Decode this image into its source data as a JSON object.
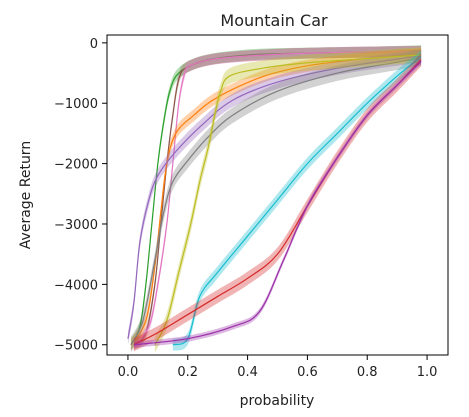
{
  "chart_data": {
    "type": "line",
    "title": "Mountain Car",
    "xlabel": "probability",
    "ylabel": "Average Return",
    "xlim": [
      -0.07,
      1.07
    ],
    "ylim": [
      -5170,
      130
    ],
    "xticks": [
      0.0,
      0.2,
      0.4,
      0.6,
      0.8,
      1.0
    ],
    "xtick_labels": [
      "0.0",
      "0.2",
      "0.4",
      "0.6",
      "0.8",
      "1.0"
    ],
    "yticks": [
      0,
      -1000,
      -2000,
      -3000,
      -4000,
      -5000
    ],
    "ytick_labels": [
      "0",
      "−1000",
      "−2000",
      "−3000",
      "−4000",
      "−5000"
    ],
    "grid": false,
    "legend": false,
    "series": [
      {
        "color": "#2ca02c",
        "band": 90,
        "points": [
          [
            0.01,
            -5000
          ],
          [
            0.04,
            -4700
          ],
          [
            0.06,
            -4000
          ],
          [
            0.08,
            -3000
          ],
          [
            0.1,
            -2000
          ],
          [
            0.12,
            -1300
          ],
          [
            0.14,
            -800
          ],
          [
            0.17,
            -500
          ],
          [
            0.25,
            -300
          ],
          [
            0.4,
            -200
          ],
          [
            0.6,
            -170
          ],
          [
            0.8,
            -155
          ],
          [
            0.98,
            -130
          ]
        ]
      },
      {
        "color": "#8c564b",
        "band": 90,
        "points": [
          [
            0.02,
            -5000
          ],
          [
            0.06,
            -4800
          ],
          [
            0.09,
            -4000
          ],
          [
            0.11,
            -3000
          ],
          [
            0.13,
            -2000
          ],
          [
            0.15,
            -1200
          ],
          [
            0.17,
            -600
          ],
          [
            0.2,
            -400
          ],
          [
            0.3,
            -260
          ],
          [
            0.5,
            -190
          ],
          [
            0.7,
            -160
          ],
          [
            0.98,
            -140
          ]
        ]
      },
      {
        "color": "#e377c2",
        "band": 90,
        "points": [
          [
            0.02,
            -5000
          ],
          [
            0.07,
            -4700
          ],
          [
            0.1,
            -4000
          ],
          [
            0.13,
            -3000
          ],
          [
            0.15,
            -2000
          ],
          [
            0.17,
            -1000
          ],
          [
            0.19,
            -500
          ],
          [
            0.21,
            -370
          ],
          [
            0.3,
            -260
          ],
          [
            0.5,
            -190
          ],
          [
            0.7,
            -160
          ],
          [
            0.98,
            -140
          ]
        ]
      },
      {
        "color": "#ff7f0e",
        "band": 100,
        "points": [
          [
            0.01,
            -5000
          ],
          [
            0.06,
            -4600
          ],
          [
            0.09,
            -3700
          ],
          [
            0.11,
            -2800
          ],
          [
            0.13,
            -2000
          ],
          [
            0.16,
            -1500
          ],
          [
            0.22,
            -1200
          ],
          [
            0.3,
            -900
          ],
          [
            0.45,
            -560
          ],
          [
            0.6,
            -380
          ],
          [
            0.8,
            -260
          ],
          [
            0.98,
            -190
          ]
        ]
      },
      {
        "color": "#9467bd",
        "band": 110,
        "points": [
          [
            0.0,
            -4900
          ],
          [
            0.02,
            -4300
          ],
          [
            0.04,
            -3300
          ],
          [
            0.07,
            -2600
          ],
          [
            0.1,
            -2200
          ],
          [
            0.16,
            -1800
          ],
          [
            0.25,
            -1350
          ],
          [
            0.35,
            -950
          ],
          [
            0.5,
            -650
          ],
          [
            0.7,
            -420
          ],
          [
            0.9,
            -270
          ],
          [
            0.98,
            -220
          ]
        ]
      },
      {
        "color": "#7f7f7f",
        "band": 130,
        "points": [
          [
            0.01,
            -5000
          ],
          [
            0.05,
            -4600
          ],
          [
            0.09,
            -3600
          ],
          [
            0.12,
            -2800
          ],
          [
            0.15,
            -2300
          ],
          [
            0.2,
            -1950
          ],
          [
            0.27,
            -1550
          ],
          [
            0.35,
            -1200
          ],
          [
            0.5,
            -800
          ],
          [
            0.7,
            -500
          ],
          [
            0.9,
            -320
          ],
          [
            0.98,
            -240
          ]
        ]
      },
      {
        "color": "#bcbd22",
        "band": 130,
        "points": [
          [
            0.09,
            -5000
          ],
          [
            0.13,
            -4600
          ],
          [
            0.17,
            -3800
          ],
          [
            0.21,
            -3000
          ],
          [
            0.24,
            -2300
          ],
          [
            0.27,
            -1700
          ],
          [
            0.29,
            -1200
          ],
          [
            0.31,
            -800
          ],
          [
            0.34,
            -550
          ],
          [
            0.45,
            -420
          ],
          [
            0.6,
            -330
          ],
          [
            0.8,
            -260
          ],
          [
            0.98,
            -200
          ]
        ]
      },
      {
        "color": "#17becf",
        "band": 100,
        "points": [
          [
            0.15,
            -5000
          ],
          [
            0.2,
            -4900
          ],
          [
            0.24,
            -4200
          ],
          [
            0.3,
            -3800
          ],
          [
            0.4,
            -3200
          ],
          [
            0.5,
            -2600
          ],
          [
            0.6,
            -2000
          ],
          [
            0.7,
            -1500
          ],
          [
            0.8,
            -1000
          ],
          [
            0.9,
            -550
          ],
          [
            0.98,
            -230
          ]
        ]
      },
      {
        "color": "#d62728",
        "band": 110,
        "points": [
          [
            0.02,
            -5000
          ],
          [
            0.1,
            -4800
          ],
          [
            0.2,
            -4500
          ],
          [
            0.3,
            -4200
          ],
          [
            0.4,
            -3900
          ],
          [
            0.5,
            -3500
          ],
          [
            0.6,
            -2700
          ],
          [
            0.7,
            -1900
          ],
          [
            0.8,
            -1200
          ],
          [
            0.9,
            -700
          ],
          [
            0.98,
            -280
          ]
        ]
      },
      {
        "color": "#9b30a8",
        "band": 50,
        "points": [
          [
            0.02,
            -5000
          ],
          [
            0.2,
            -4900
          ],
          [
            0.35,
            -4700
          ],
          [
            0.44,
            -4450
          ],
          [
            0.52,
            -3600
          ],
          [
            0.6,
            -2700
          ],
          [
            0.7,
            -1900
          ],
          [
            0.8,
            -1200
          ],
          [
            0.9,
            -700
          ],
          [
            0.98,
            -310
          ]
        ]
      }
    ]
  }
}
